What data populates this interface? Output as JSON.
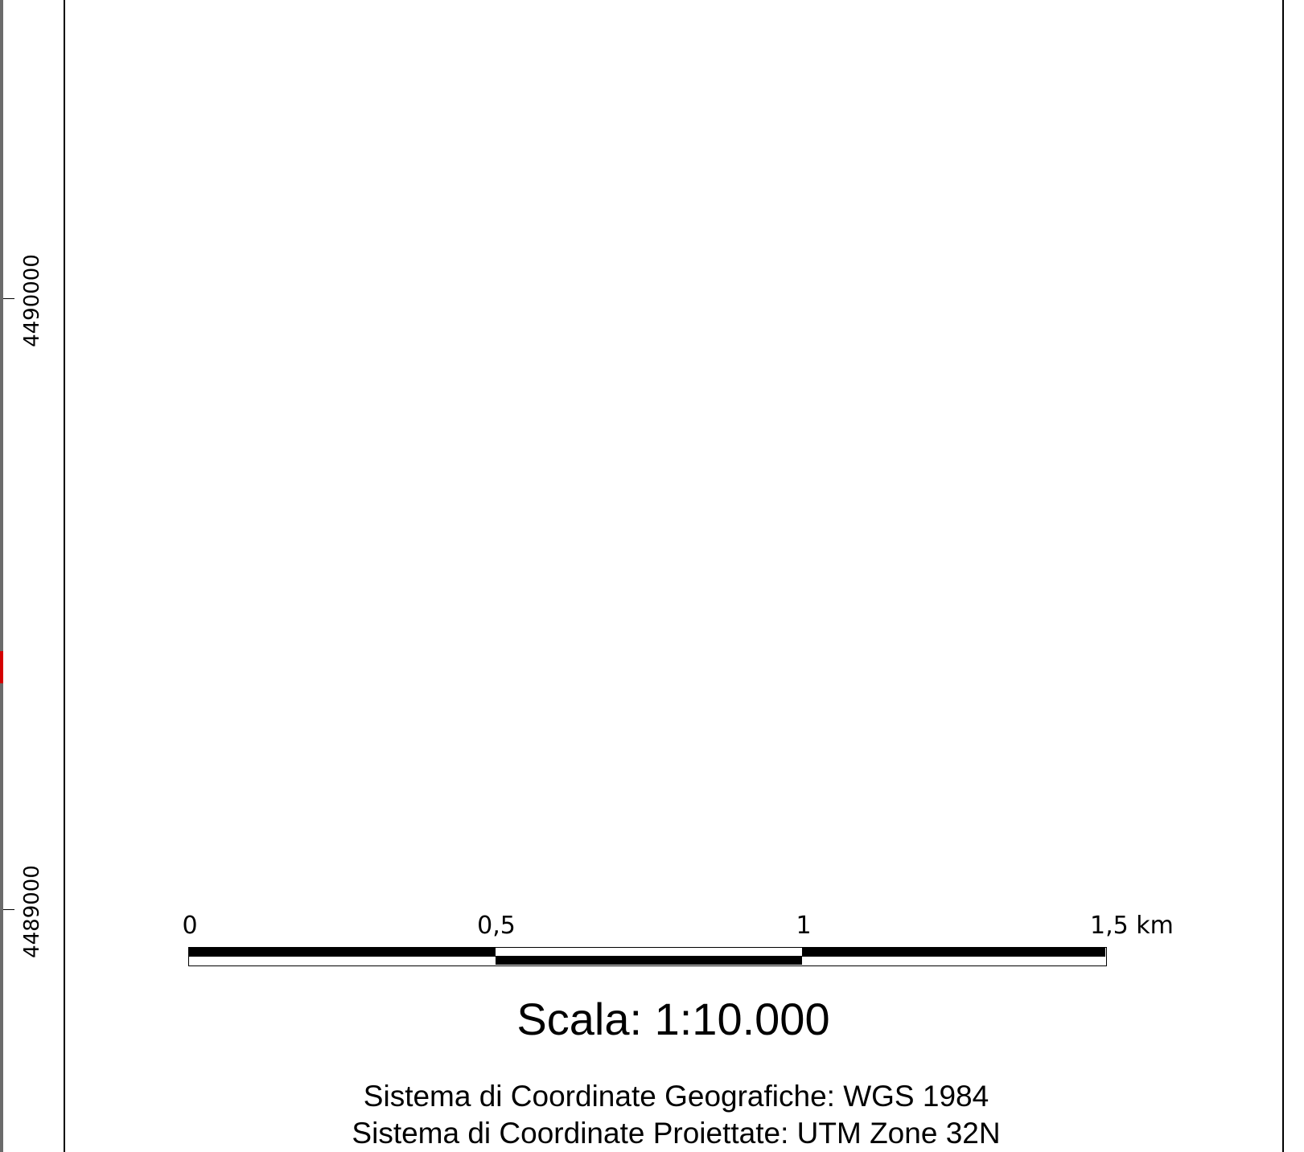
{
  "map": {
    "northing_labels": [
      "4490000",
      "4489000"
    ],
    "scalebar": {
      "labels": [
        "0",
        "0,5",
        "1",
        "1,5 km"
      ]
    },
    "scale_text": "Scala: 1:10.000",
    "crs_geographic": "Sistema di Coordinate Geografiche: WGS 1984",
    "crs_projected": "Sistema di Coordinate Proiettate: UTM Zone 32N"
  },
  "colors": {
    "frame": "#000000",
    "background": "#ffffff",
    "edge_strip": "#6b6b6b",
    "edge_accent": "#d40000"
  }
}
